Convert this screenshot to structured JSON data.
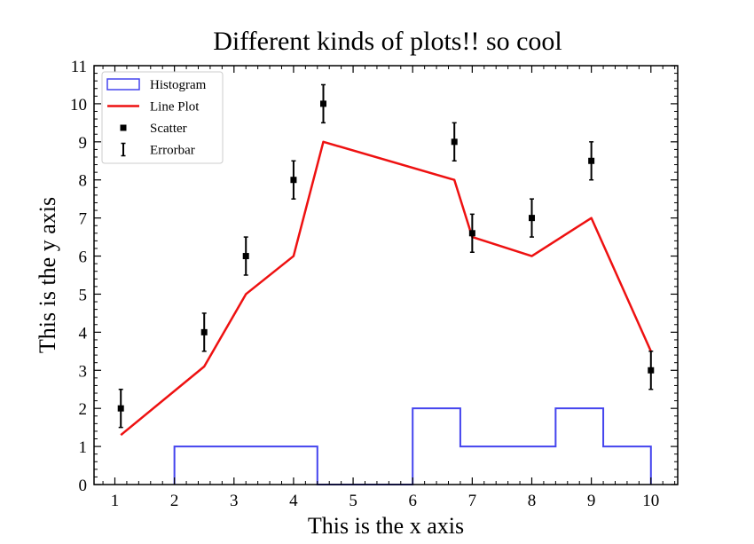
{
  "chart_data": {
    "type": "line",
    "title": "Different kinds of plots!! so cool",
    "xlabel": "This is the x axis",
    "ylabel": "This is the y axis",
    "xlim": [
      0.65,
      10.45
    ],
    "ylim": [
      0,
      11
    ],
    "xticks": [
      1,
      2,
      3,
      4,
      5,
      6,
      7,
      8,
      9,
      10
    ],
    "yticks": [
      0,
      1,
      2,
      3,
      4,
      5,
      6,
      7,
      8,
      9,
      10,
      11
    ],
    "legend_position": "upper-left",
    "grid": false,
    "legend": [
      {
        "label": "Histogram",
        "kind": "histogram"
      },
      {
        "label": "Line Plot",
        "kind": "line"
      },
      {
        "label": "Scatter",
        "kind": "scatter"
      },
      {
        "label": "Errorbar",
        "kind": "errorbar"
      }
    ],
    "histogram": {
      "color": "#4444ee",
      "bins": [
        {
          "x0": 2.0,
          "x1": 4.4,
          "count": 1
        },
        {
          "x0": 4.4,
          "x1": 6.0,
          "count": 0
        },
        {
          "x0": 6.0,
          "x1": 6.8,
          "count": 2
        },
        {
          "x0": 6.8,
          "x1": 8.4,
          "count": 1
        },
        {
          "x0": 8.4,
          "x1": 9.2,
          "count": 2
        },
        {
          "x0": 9.2,
          "x1": 10.0,
          "count": 1
        }
      ]
    },
    "line": {
      "color": "#ee1111",
      "x": [
        1.1,
        2.5,
        3.2,
        4.0,
        4.5,
        6.7,
        7.0,
        8.0,
        9.0,
        10.0
      ],
      "y": [
        1.3,
        3.1,
        5.0,
        6.0,
        9.0,
        8.0,
        6.5,
        6.0,
        7.0,
        3.5
      ]
    },
    "scatter": {
      "color": "#000000",
      "x": [
        1.1,
        2.5,
        3.2,
        4.0,
        4.5,
        6.7,
        7.0,
        8.0,
        9.0,
        10.0
      ],
      "y": [
        2.0,
        4.0,
        6.0,
        8.0,
        10.0,
        9.0,
        6.6,
        7.0,
        8.5,
        3.0
      ],
      "yerr": 0.5
    }
  }
}
